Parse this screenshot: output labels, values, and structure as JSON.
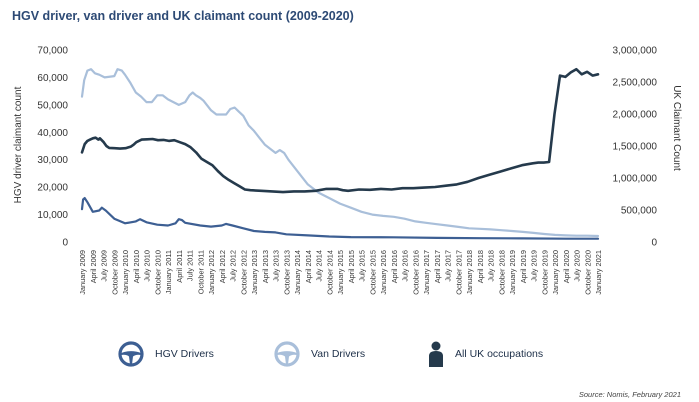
{
  "title": "HGV driver, van driver and UK claimant count (2009-2020)",
  "source": "Source: Nomis, February 2021",
  "colors": {
    "hgv": "#3d5f93",
    "van": "#a9bfda",
    "uk": "#253a4c",
    "title": "#2d4a75"
  },
  "chart_data": {
    "type": "line",
    "title": "HGV driver, van driver and UK claimant count (2009-2020)",
    "ylabel": "HGV driver claimant count",
    "y2label": "UK Claimant Count",
    "ylim": [
      0,
      70000
    ],
    "y2lim": [
      0,
      3000000
    ],
    "yticks": [
      "0",
      "10,000",
      "20,000",
      "30,000",
      "40,000",
      "50,000",
      "60,000",
      "70,000"
    ],
    "y2ticks": [
      "0",
      "500,000",
      "1,000,000",
      "1,500,000",
      "2,000,000",
      "2,500,000",
      "3,000,000"
    ],
    "xticks": [
      "January 2009",
      "April 2009",
      "July 2009",
      "October 2009",
      "January 2010",
      "April 2010",
      "July 2010",
      "October 2010",
      "January 2011",
      "April 2011",
      "July 2011",
      "October 2011",
      "January 2012",
      "April 2012",
      "July 2012",
      "October 2012",
      "January 2013",
      "April 2013",
      "July 2013",
      "October 2013",
      "January 2014",
      "April 2014",
      "July 2014",
      "October 2014",
      "January 2015",
      "April 2015",
      "July 2015",
      "October 2015",
      "January 2016",
      "April 2016",
      "July 2016",
      "October 2016",
      "January 2017",
      "April 2017",
      "July 2017",
      "October 2017",
      "January 2018",
      "April 2018",
      "July 2018",
      "October 2018",
      "January 2019",
      "April 2019",
      "July 2019",
      "October 2019",
      "January 2020",
      "April 2020",
      "July 2020",
      "October 2020",
      "January 2021"
    ],
    "series": [
      {
        "name": "HGV Drivers",
        "axis": "left",
        "points": [
          [
            0,
            12000
          ],
          [
            0.1,
            15500
          ],
          [
            0.25,
            16000
          ],
          [
            0.5,
            14500
          ],
          [
            1,
            11000
          ],
          [
            1.6,
            11500
          ],
          [
            1.85,
            12500
          ],
          [
            2.2,
            11500
          ],
          [
            3,
            8500
          ],
          [
            4,
            6800
          ],
          [
            5,
            7500
          ],
          [
            5.4,
            8300
          ],
          [
            6,
            7200
          ],
          [
            7,
            6300
          ],
          [
            8,
            6000
          ],
          [
            8.7,
            6800
          ],
          [
            9,
            8300
          ],
          [
            9.3,
            8000
          ],
          [
            9.6,
            7000
          ],
          [
            11,
            6000
          ],
          [
            12,
            5600
          ],
          [
            13,
            6000
          ],
          [
            13.4,
            6600
          ],
          [
            14,
            6000
          ],
          [
            15,
            5000
          ],
          [
            16,
            4000
          ],
          [
            17,
            3700
          ],
          [
            18,
            3500
          ],
          [
            19,
            2800
          ],
          [
            21,
            2400
          ],
          [
            23,
            2000
          ],
          [
            25,
            1800
          ],
          [
            29,
            1700
          ],
          [
            33,
            1500
          ],
          [
            37,
            1400
          ],
          [
            41,
            1300
          ],
          [
            45,
            1200
          ],
          [
            48,
            1200
          ]
        ]
      },
      {
        "name": "Van Drivers",
        "axis": "left",
        "points": [
          [
            0,
            53000
          ],
          [
            0.2,
            59000
          ],
          [
            0.5,
            62500
          ],
          [
            0.85,
            63000
          ],
          [
            1.2,
            61500
          ],
          [
            1.6,
            61000
          ],
          [
            2.1,
            60000
          ],
          [
            3,
            60500
          ],
          [
            3.3,
            63000
          ],
          [
            3.7,
            62500
          ],
          [
            4,
            61000
          ],
          [
            4.5,
            58000
          ],
          [
            5,
            54500
          ],
          [
            5.5,
            53000
          ],
          [
            6,
            51000
          ],
          [
            6.5,
            51000
          ],
          [
            7,
            53500
          ],
          [
            7.5,
            53500
          ],
          [
            8,
            52000
          ],
          [
            8.5,
            51000
          ],
          [
            9,
            50000
          ],
          [
            9.6,
            51000
          ],
          [
            10,
            53500
          ],
          [
            10.3,
            54500
          ],
          [
            10.6,
            53500
          ],
          [
            11,
            52500
          ],
          [
            11.3,
            51500
          ],
          [
            11.7,
            49500
          ],
          [
            12,
            48000
          ],
          [
            12.5,
            46500
          ],
          [
            13,
            46500
          ],
          [
            13.4,
            46500
          ],
          [
            13.8,
            48500
          ],
          [
            14.2,
            49000
          ],
          [
            14.6,
            47500
          ],
          [
            15,
            46000
          ],
          [
            15.5,
            42500
          ],
          [
            16,
            40500
          ],
          [
            16.5,
            38000
          ],
          [
            17,
            35500
          ],
          [
            17.5,
            34000
          ],
          [
            18,
            32500
          ],
          [
            18.4,
            33500
          ],
          [
            18.8,
            32500
          ],
          [
            19.2,
            30000
          ],
          [
            19.6,
            28000
          ],
          [
            20,
            26000
          ],
          [
            21,
            21000
          ],
          [
            22,
            18000
          ],
          [
            23,
            16000
          ],
          [
            24,
            14000
          ],
          [
            25,
            12500
          ],
          [
            26,
            11000
          ],
          [
            27,
            10000
          ],
          [
            28,
            9500
          ],
          [
            29,
            9200
          ],
          [
            30,
            8500
          ],
          [
            31,
            7500
          ],
          [
            32,
            7000
          ],
          [
            33,
            6500
          ],
          [
            34,
            6000
          ],
          [
            35,
            5500
          ],
          [
            36,
            5000
          ],
          [
            37,
            4800
          ],
          [
            38,
            4600
          ],
          [
            39,
            4300
          ],
          [
            40,
            4000
          ],
          [
            41,
            3700
          ],
          [
            42,
            3300
          ],
          [
            43,
            2900
          ],
          [
            44,
            2600
          ],
          [
            45,
            2400
          ],
          [
            46,
            2300
          ],
          [
            47,
            2300
          ],
          [
            48,
            2200
          ]
        ]
      },
      {
        "name": "All UK occupations",
        "axis": "right",
        "points": [
          [
            0,
            1400000
          ],
          [
            0.5,
            1530000
          ],
          [
            1,
            1580000
          ],
          [
            1.5,
            1600000
          ],
          [
            2,
            1620000
          ],
          [
            2.5,
            1630000
          ],
          [
            3,
            1600000
          ],
          [
            3.3,
            1620000
          ],
          [
            4,
            1560000
          ],
          [
            4.5,
            1500000
          ],
          [
            5,
            1470000
          ],
          [
            6,
            1465000
          ],
          [
            7,
            1460000
          ],
          [
            8,
            1465000
          ],
          [
            9,
            1490000
          ],
          [
            9.5,
            1520000
          ],
          [
            10,
            1560000
          ],
          [
            11,
            1600000
          ],
          [
            12,
            1605000
          ],
          [
            13,
            1610000
          ],
          [
            14,
            1590000
          ],
          [
            15,
            1595000
          ],
          [
            16,
            1580000
          ],
          [
            17,
            1590000
          ],
          [
            18,
            1560000
          ],
          [
            19,
            1530000
          ],
          [
            20,
            1480000
          ],
          [
            21,
            1400000
          ],
          [
            22,
            1300000
          ],
          [
            23,
            1250000
          ],
          [
            24,
            1200000
          ],
          [
            25,
            1110000
          ],
          [
            26,
            1030000
          ],
          [
            27,
            970000
          ],
          [
            28,
            920000
          ],
          [
            29,
            870000
          ],
          [
            30,
            820000
          ],
          [
            31,
            810000
          ],
          [
            33,
            800000
          ],
          [
            35,
            790000
          ],
          [
            37,
            780000
          ],
          [
            39,
            790000
          ],
          [
            41,
            790000
          ],
          [
            43,
            800000
          ],
          [
            45,
            830000
          ],
          [
            47,
            830000
          ],
          [
            48,
            810000
          ],
          [
            49,
            800000
          ],
          [
            51,
            820000
          ],
          [
            53,
            815000
          ],
          [
            55,
            830000
          ],
          [
            57,
            820000
          ],
          [
            59,
            840000
          ],
          [
            61,
            840000
          ],
          [
            63,
            850000
          ],
          [
            65,
            860000
          ],
          [
            67,
            880000
          ],
          [
            69,
            900000
          ],
          [
            71,
            940000
          ],
          [
            73,
            1000000
          ],
          [
            75,
            1050000
          ],
          [
            77,
            1100000
          ],
          [
            79,
            1150000
          ],
          [
            81,
            1200000
          ],
          [
            83,
            1230000
          ],
          [
            84,
            1240000
          ],
          [
            85,
            1240000
          ],
          [
            86,
            1250000
          ],
          [
            87,
            2000000
          ],
          [
            88,
            2600000
          ],
          [
            89,
            2580000
          ],
          [
            90,
            2650000
          ],
          [
            91,
            2700000
          ],
          [
            92,
            2620000
          ],
          [
            93,
            2660000
          ],
          [
            94,
            2600000
          ],
          [
            95,
            2620000
          ]
        ]
      }
    ]
  },
  "legend": [
    {
      "label": "HGV Drivers",
      "icon": "steering-wheel-icon"
    },
    {
      "label": "Van Drivers",
      "icon": "steering-wheel-icon"
    },
    {
      "label": "All UK occupations",
      "icon": "person-icon"
    }
  ]
}
